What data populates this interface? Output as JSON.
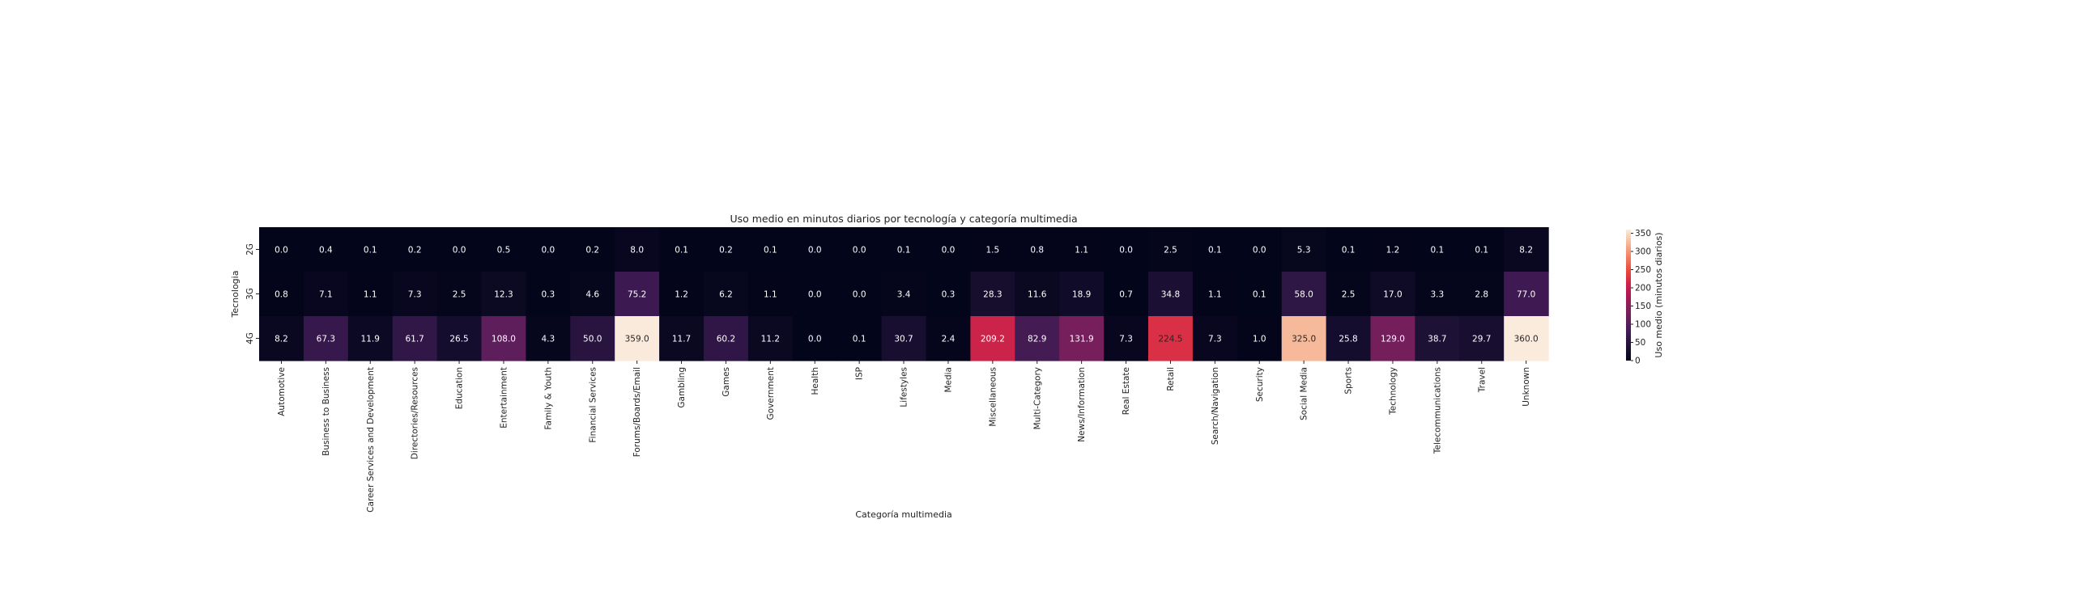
{
  "chart_data": {
    "type": "heatmap",
    "title": "Uso medio en minutos diarios por tecnología y categoría multimedia",
    "xlabel": "Categoría multimedia",
    "ylabel": "Tecnologia",
    "rows": [
      "2G",
      "3G",
      "4G"
    ],
    "columns": [
      "Automotive",
      "Business to Business",
      "Career Services and Development",
      "Directories/Resources",
      "Education",
      "Entertainment",
      "Family & Youth",
      "Financial Services",
      "Forums/Boards/Email",
      "Gambling",
      "Games",
      "Government",
      "Health",
      "ISP",
      "Lifestyles",
      "Media",
      "Miscellaneous",
      "Multi-Category",
      "News/Information",
      "Real Estate",
      "Retail",
      "Search/Navigation",
      "Security",
      "Social Media",
      "Sports",
      "Technology",
      "Telecommunications",
      "Travel",
      "Unknown"
    ],
    "values": [
      [
        0.0,
        0.4,
        0.1,
        0.2,
        0.0,
        0.5,
        0.0,
        0.2,
        8.0,
        0.1,
        0.2,
        0.1,
        0.0,
        0.0,
        0.1,
        0.0,
        1.5,
        0.8,
        1.1,
        0.0,
        2.5,
        0.1,
        0.0,
        5.3,
        0.1,
        1.2,
        0.1,
        0.1,
        8.2
      ],
      [
        0.8,
        7.1,
        1.1,
        7.3,
        2.5,
        12.3,
        0.3,
        4.6,
        75.2,
        1.2,
        6.2,
        1.1,
        0.0,
        0.0,
        3.4,
        0.3,
        28.3,
        11.6,
        18.9,
        0.7,
        34.8,
        1.1,
        0.1,
        58.0,
        2.5,
        17.0,
        3.3,
        2.8,
        77.0
      ],
      [
        8.2,
        67.3,
        11.9,
        61.7,
        26.5,
        108.0,
        4.3,
        50.0,
        359.0,
        11.7,
        60.2,
        11.2,
        0.0,
        0.1,
        30.7,
        2.4,
        209.2,
        82.9,
        131.9,
        7.3,
        224.5,
        7.3,
        1.0,
        325.0,
        25.8,
        129.0,
        38.7,
        29.7,
        360.0
      ]
    ],
    "colorbar": {
      "label": "Uso medio (minutos diarios)",
      "range": [
        0,
        360
      ],
      "ticks": [
        0,
        50,
        100,
        150,
        200,
        250,
        300,
        350
      ],
      "colormap": "rocket"
    },
    "value_format": "one decimal",
    "grid": false
  }
}
